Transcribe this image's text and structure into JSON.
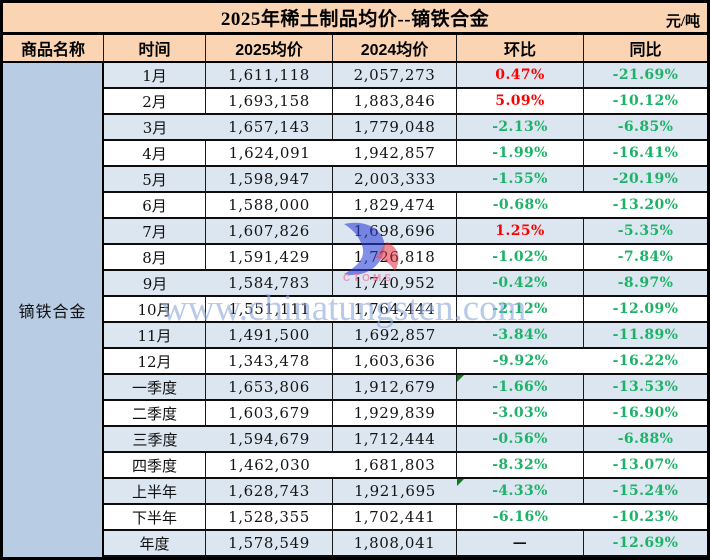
{
  "chart_data": {
    "type": "table",
    "title": "2025年稀土制品均价--镝铁合金",
    "unit": "元/吨",
    "product_name": "镝铁合金",
    "columns": [
      "商品名称",
      "时间",
      "2025均价",
      "2024均价",
      "环比",
      "同比"
    ],
    "rows": [
      {
        "period": "1月",
        "avg2025": "1,611,118",
        "avg2024": "2,057,273",
        "mom": "0.47%",
        "yoy": "-21.69%"
      },
      {
        "period": "2月",
        "avg2025": "1,693,158",
        "avg2024": "1,883,846",
        "mom": "5.09%",
        "yoy": "-10.12%"
      },
      {
        "period": "3月",
        "avg2025": "1,657,143",
        "avg2024": "1,779,048",
        "mom": "-2.13%",
        "yoy": "-6.85%"
      },
      {
        "period": "4月",
        "avg2025": "1,624,091",
        "avg2024": "1,942,857",
        "mom": "-1.99%",
        "yoy": "-16.41%"
      },
      {
        "period": "5月",
        "avg2025": "1,598,947",
        "avg2024": "2,003,333",
        "mom": "-1.55%",
        "yoy": "-20.19%"
      },
      {
        "period": "6月",
        "avg2025": "1,588,000",
        "avg2024": "1,829,474",
        "mom": "-0.68%",
        "yoy": "-13.20%"
      },
      {
        "period": "7月",
        "avg2025": "1,607,826",
        "avg2024": "1,698,696",
        "mom": "1.25%",
        "yoy": "-5.35%"
      },
      {
        "period": "8月",
        "avg2025": "1,591,429",
        "avg2024": "1,726,818",
        "mom": "-1.02%",
        "yoy": "-7.84%"
      },
      {
        "period": "9月",
        "avg2025": "1,584,783",
        "avg2024": "1,740,952",
        "mom": "-0.42%",
        "yoy": "-8.97%"
      },
      {
        "period": "10月",
        "avg2025": "1,551,111",
        "avg2024": "1,764,444",
        "mom": "-2.12%",
        "yoy": "-12.09%"
      },
      {
        "period": "11月",
        "avg2025": "1,491,500",
        "avg2024": "1,692,857",
        "mom": "-3.84%",
        "yoy": "-11.89%"
      },
      {
        "period": "12月",
        "avg2025": "1,343,478",
        "avg2024": "1,603,636",
        "mom": "-9.92%",
        "yoy": "-16.22%"
      },
      {
        "period": "一季度",
        "avg2025": "1,653,806",
        "avg2024": "1,912,679",
        "mom": "-1.66%",
        "yoy": "-13.53%",
        "flag": true
      },
      {
        "period": "二季度",
        "avg2025": "1,603,679",
        "avg2024": "1,929,839",
        "mom": "-3.03%",
        "yoy": "-16.90%"
      },
      {
        "period": "三季度",
        "avg2025": "1,594,679",
        "avg2024": "1,712,444",
        "mom": "-0.56%",
        "yoy": "-6.88%"
      },
      {
        "period": "四季度",
        "avg2025": "1,462,030",
        "avg2024": "1,681,803",
        "mom": "-8.32%",
        "yoy": "-13.07%"
      },
      {
        "period": "上半年",
        "avg2025": "1,628,743",
        "avg2024": "1,921,695",
        "mom": "-4.33%",
        "yoy": "-15.24%",
        "flag": true
      },
      {
        "period": "下半年",
        "avg2025": "1,528,355",
        "avg2024": "1,702,441",
        "mom": "-6.16%",
        "yoy": "-10.23%"
      },
      {
        "period": "年度",
        "avg2025": "1,578,549",
        "avg2024": "1,808,041",
        "mom": "—",
        "yoy": "-12.69%"
      }
    ]
  },
  "watermark": {
    "text": "www.chinatungsten.com",
    "logo_text": "CTOMS"
  },
  "colors": {
    "header_bg": "#fbd4b4",
    "product_bg": "#b8cce4",
    "band_blue": "#dce6f1",
    "up_red": "#fe0000",
    "down_green": "#1db268",
    "marker_green": "#0e7a1e",
    "watermark_blue": "#8ea9dc"
  }
}
